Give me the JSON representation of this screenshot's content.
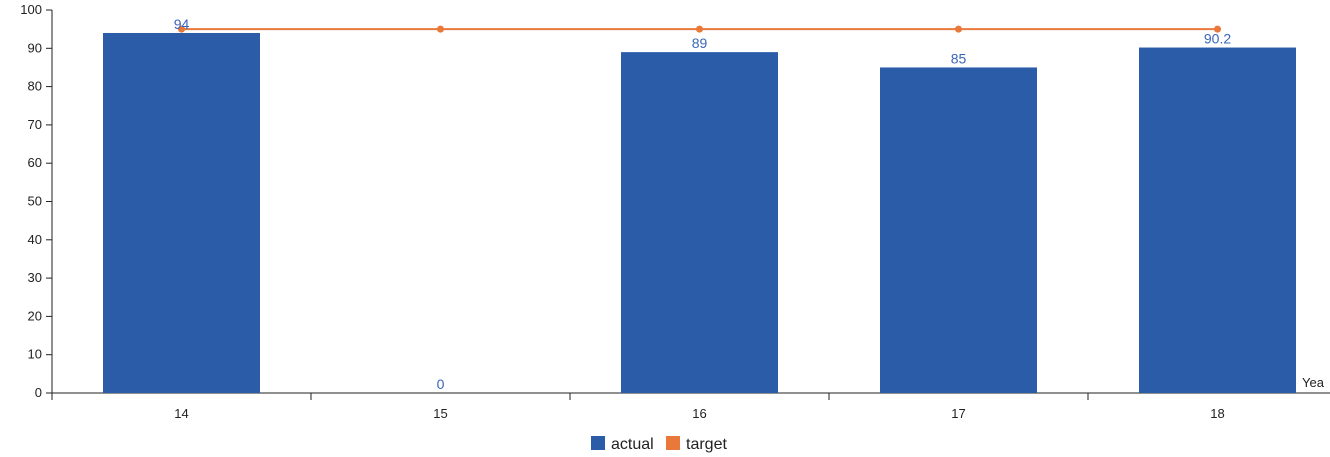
{
  "chart_data": {
    "type": "bar",
    "title": "",
    "xlabel": "Yea",
    "ylabel": "",
    "ylim": [
      0,
      100
    ],
    "yticks": [
      0,
      10,
      20,
      30,
      40,
      50,
      60,
      70,
      80,
      90,
      100
    ],
    "categories": [
      "14",
      "15",
      "16",
      "17",
      "18"
    ],
    "series": [
      {
        "name": "actual",
        "kind": "bar",
        "values": [
          94,
          0,
          89,
          85,
          90.2
        ],
        "labels": [
          "94",
          "0",
          "89",
          "85",
          "90.2"
        ]
      },
      {
        "name": "target",
        "kind": "line",
        "values": [
          95,
          95,
          95,
          95,
          95
        ]
      }
    ],
    "grid": false,
    "legend": "bottom-center",
    "colors": {
      "actual": "#2b5ca8",
      "target": "#e8793a",
      "label": "#3a66b8",
      "axis": "#222222"
    }
  }
}
